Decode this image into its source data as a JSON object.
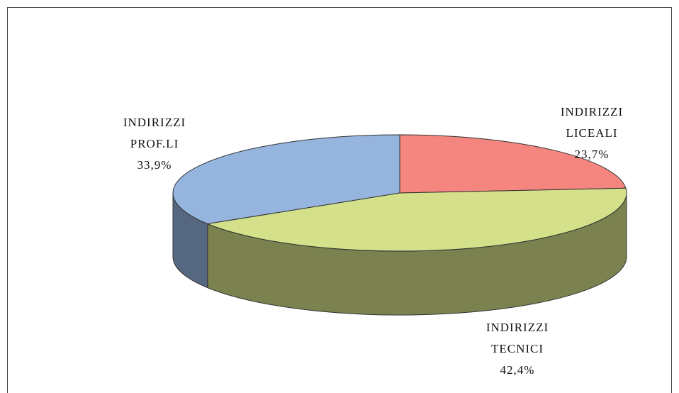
{
  "chart_data": {
    "type": "pie3d",
    "categories": [
      "INDIRIZZI LICEALI",
      "INDIRIZZI TECNICI",
      "INDIRIZZI PROF.LI"
    ],
    "values": [
      23.7,
      42.4,
      33.9
    ],
    "value_labels": [
      "23,7%",
      "42,4%",
      "33,9%"
    ],
    "colors": [
      "#f4857f",
      "#d4e08a",
      "#95b4de"
    ]
  }
}
